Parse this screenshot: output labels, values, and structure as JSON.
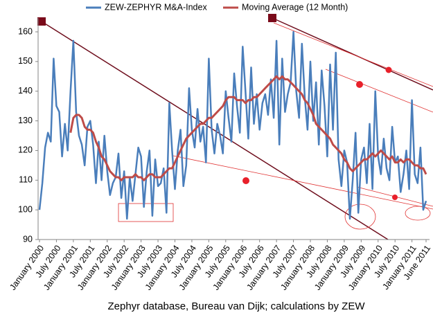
{
  "chart_data": {
    "type": "line",
    "footer": "Zephyr database, Bureau van Dijk; calculations by ZEW",
    "categories": [
      "January 2000",
      null,
      null,
      null,
      null,
      null,
      "July 2000",
      null,
      null,
      null,
      null,
      null,
      "January 2001",
      null,
      null,
      null,
      null,
      null,
      "July 2001",
      null,
      null,
      null,
      null,
      null,
      "January 2002",
      null,
      null,
      null,
      null,
      null,
      "July 2002",
      null,
      null,
      null,
      null,
      null,
      "January 2003",
      null,
      null,
      null,
      null,
      null,
      "July 2003",
      null,
      null,
      null,
      null,
      null,
      "January 2004",
      null,
      null,
      null,
      null,
      null,
      "July 2004",
      null,
      null,
      null,
      null,
      null,
      "January 2005",
      null,
      null,
      null,
      null,
      null,
      "July 2005",
      null,
      null,
      null,
      null,
      null,
      "January 2006",
      null,
      null,
      null,
      null,
      null,
      "July 2006",
      null,
      null,
      null,
      null,
      null,
      "January 2007",
      null,
      null,
      null,
      null,
      null,
      "July 2007",
      null,
      null,
      null,
      null,
      null,
      "January 2008",
      null,
      null,
      null,
      null,
      null,
      "July 2008",
      null,
      null,
      null,
      null,
      null,
      "January 2009",
      null,
      null,
      null,
      null,
      null,
      "July 2009",
      null,
      null,
      null,
      null,
      null,
      "January 2010",
      null,
      null,
      null,
      null,
      null,
      "July 2010",
      null,
      null,
      null,
      null,
      null,
      "January 2011",
      null,
      null,
      null,
      null,
      "June 2011"
    ],
    "series": [
      {
        "name": "ZEW-ZEPHYR M&A-Index",
        "color": "#4a7ebb",
        "values": [
          100,
          109,
          121,
          126,
          123,
          151,
          135,
          133,
          118,
          129,
          120,
          140,
          157,
          133,
          125,
          122,
          115,
          128,
          130,
          122,
          109,
          123,
          110,
          125,
          113,
          105,
          109,
          111,
          119,
          104,
          113,
          97,
          111,
          103,
          112,
          121,
          118,
          101,
          113,
          120,
          98,
          117,
          108,
          109,
          114,
          99,
          136,
          120,
          107,
          120,
          127,
          108,
          115,
          141,
          127,
          121,
          134,
          123,
          128,
          116,
          151,
          127,
          119,
          129,
          125,
          119,
          140,
          131,
          123,
          146,
          135,
          126,
          155,
          140,
          124,
          148,
          129,
          139,
          127,
          136,
          139,
          132,
          144,
          131,
          157,
          122,
          151,
          133,
          139,
          143,
          160,
          140,
          131,
          156,
          138,
          127,
          150,
          130,
          143,
          122,
          147,
          135,
          118,
          149,
          127,
          153,
          117,
          108,
          120,
          116,
          97,
          110,
          126,
          99,
          117,
          121,
          109,
          129,
          107,
          140,
          118,
          112,
          124,
          114,
          110,
          128,
          116,
          118,
          106,
          112,
          120,
          107,
          137,
          112,
          109,
          121,
          100,
          103
        ]
      },
      {
        "name": "Moving Average (12 Month)",
        "color": "#be4b48",
        "values": [
          null,
          null,
          null,
          null,
          null,
          null,
          null,
          null,
          null,
          null,
          null,
          126,
          131,
          132,
          132,
          131,
          128,
          127,
          127,
          126,
          123,
          121,
          118,
          117,
          115,
          113,
          112,
          111,
          111,
          110,
          111,
          111,
          111,
          111,
          112,
          111,
          111,
          110,
          111,
          112,
          112,
          111,
          111,
          111,
          112,
          113,
          114,
          114,
          116,
          118,
          120,
          122,
          124,
          125,
          126,
          127,
          128,
          129,
          129,
          130,
          131,
          131,
          132,
          133,
          134,
          135,
          137,
          138,
          138,
          138,
          137,
          137,
          137,
          136,
          137,
          137,
          138,
          138,
          139,
          140,
          141,
          142,
          143,
          144,
          145,
          144,
          145,
          144,
          144,
          143,
          142,
          141,
          140,
          139,
          137,
          136,
          134,
          132,
          129,
          128,
          127,
          126,
          125,
          124,
          122,
          121,
          120,
          119,
          117,
          116,
          114,
          113,
          114,
          115,
          116,
          117,
          117,
          118,
          119,
          118,
          119,
          120,
          119,
          118,
          117,
          118,
          116,
          116,
          117,
          116,
          117,
          117,
          116,
          115,
          115,
          114,
          114,
          112
        ]
      }
    ],
    "ylim": [
      90,
      160
    ],
    "yticks": [
      90,
      100,
      110,
      120,
      130,
      140,
      150,
      160
    ]
  }
}
